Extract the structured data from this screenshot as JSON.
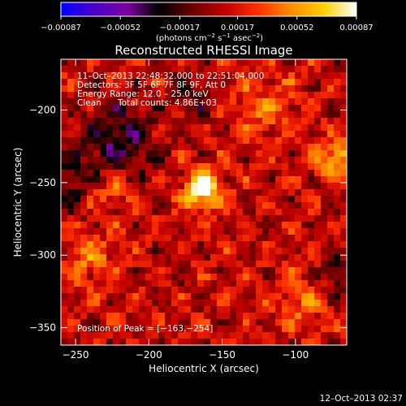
{
  "chart_data": {
    "type": "heatmap",
    "title": "Reconstructed RHESSI Image",
    "xlabel": "Heliocentric X (arcsec)",
    "ylabel": "Heliocentric Y (arcsec)",
    "xlim": [
      -260,
      -65
    ],
    "ylim": [
      -362,
      -165
    ],
    "xticks": [
      -250,
      -200,
      -150,
      -100
    ],
    "yticks": [
      -350,
      -300,
      -250,
      -200
    ],
    "x_tick_labels": [
      "−250",
      "−200",
      "−150",
      "−100"
    ],
    "y_tick_labels": [
      "−350",
      "−300",
      "−250",
      "−200"
    ],
    "colorbar": {
      "range": [
        -0.00087,
        0.00087
      ],
      "ticks": [
        -0.00087,
        -0.00052,
        -0.00017,
        0.00017,
        0.00052,
        0.00087
      ],
      "tick_labels": [
        "−0.00087",
        "−0.00052",
        "−0.00017",
        "0.00017",
        "0.00052",
        "0.00087"
      ],
      "units_label": "(photons cm",
      "units_exp1": "−2",
      "units_mid": " s",
      "units_exp2": "−1",
      "units_mid2": " asec",
      "units_exp3": "−2",
      "units_end": ")",
      "colormap": [
        "#0000ff",
        "#4a00c8",
        "#7a00a0",
        "#000000",
        "#6a0000",
        "#c00000",
        "#ff3000",
        "#ff8c00",
        "#ffd000",
        "#ffffff"
      ]
    },
    "peak": {
      "x": -163,
      "y": -254
    },
    "sources": [
      {
        "x": -163,
        "y": -254,
        "amp": 1.0,
        "sigma": 9
      },
      {
        "x": -72,
        "y": -235,
        "amp": 0.62,
        "sigma": 9
      },
      {
        "x": -240,
        "y": -303,
        "amp": 0.35,
        "sigma": 12
      },
      {
        "x": -225,
        "y": -255,
        "amp": 0.3,
        "sigma": 10
      },
      {
        "x": -95,
        "y": -330,
        "amp": 0.28,
        "sigma": 14
      },
      {
        "x": -120,
        "y": -200,
        "amp": 0.3,
        "sigma": 16
      }
    ],
    "negative_regions": [
      {
        "x": -220,
        "y": -220,
        "amp": -0.5,
        "sigma": 18
      },
      {
        "x": -260,
        "y": -250,
        "amp": -0.35,
        "sigma": 14
      },
      {
        "x": -70,
        "y": -315,
        "amp": -0.4,
        "sigma": 10
      },
      {
        "x": -170,
        "y": -190,
        "amp": -0.25,
        "sigma": 12
      }
    ]
  },
  "overlay": {
    "time_range": "11–Oct–2013 22:48:32.000 to 22:51:04.000",
    "detectors": "Detectors: 3F 5F 6F 7F 8F 9F, Att 0",
    "energy_range": "Energy Range: 12.0 – 25.0 keV",
    "algorithm": "Clean",
    "total_counts": "Total counts: 4.86E+03",
    "peak_position": "Position of Peak = [−163,−254]"
  },
  "timestamp": "12–Oct–2013 02:37"
}
